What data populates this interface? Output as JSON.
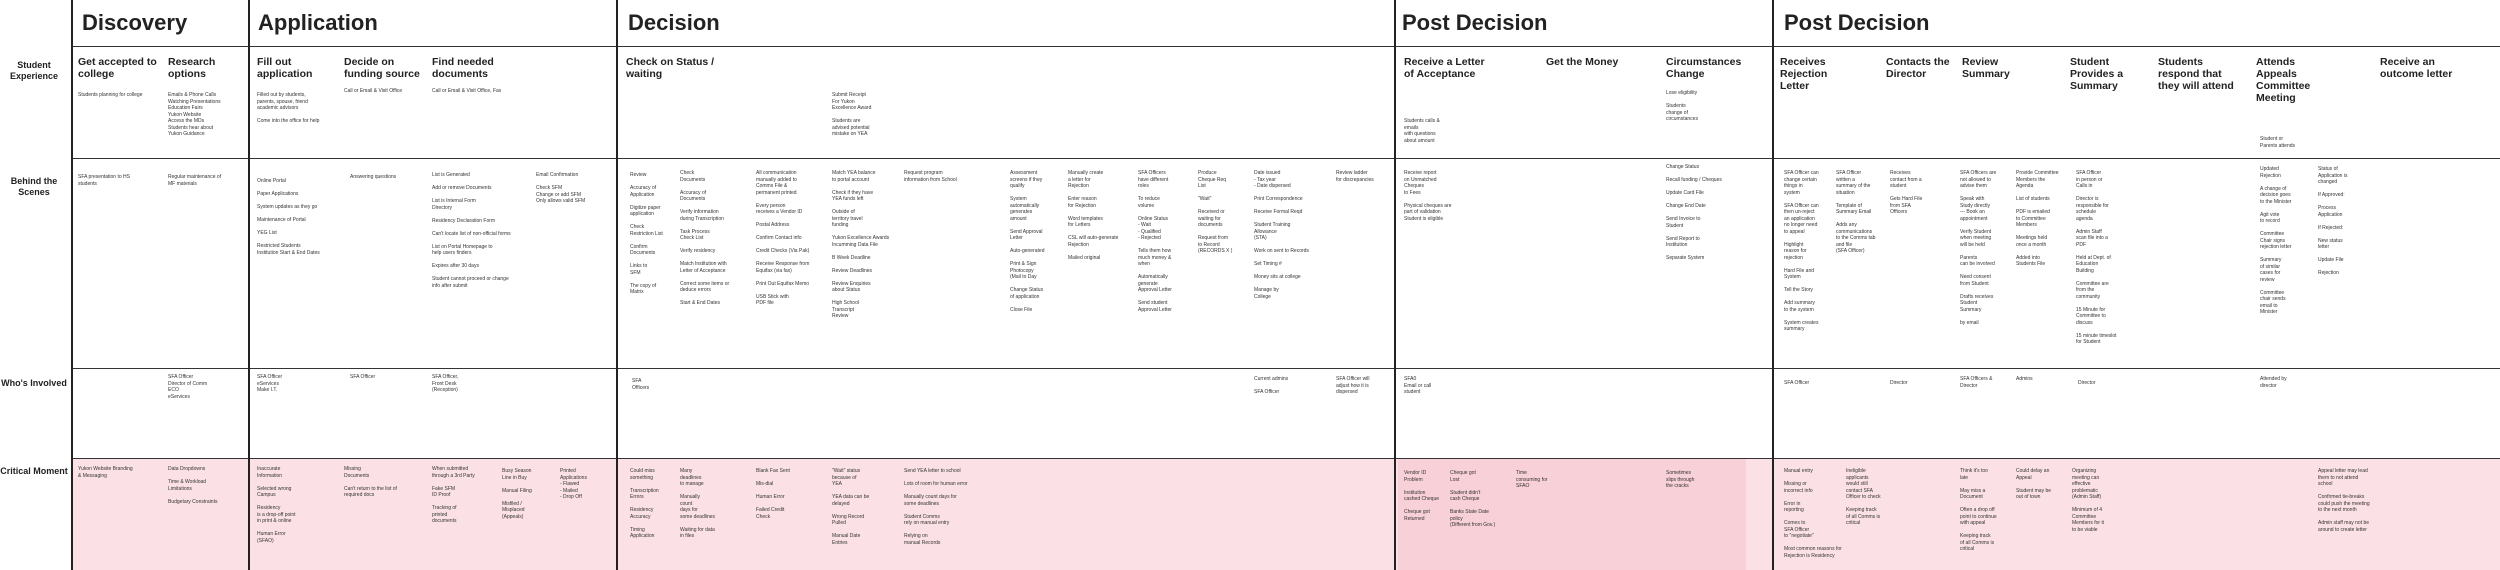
{
  "phases": [
    {
      "id": "discovery",
      "title": "Discovery"
    },
    {
      "id": "application",
      "title": "Application"
    },
    {
      "id": "decision",
      "title": "Decision"
    },
    {
      "id": "post1",
      "title": "Post Decision"
    },
    {
      "id": "post2",
      "title": "Post Decision"
    }
  ],
  "rows": {
    "student_experience": "Student Experience",
    "behind_scenes": "Behind the Scenes",
    "whos_involved": "Who's Involved",
    "critical_moment": "Critical Moment"
  },
  "steps": {
    "get_accepted": "Get accepted to college",
    "research_options": "Research options",
    "fill_out_application": "Fill out application",
    "decide_funding": "Decide on funding source",
    "find_documents": "Find needed documents",
    "check_status": "Check on Status / waiting",
    "receive_acceptance": "Receive a Letter of Acceptance",
    "get_money": "Get the Money",
    "circumstances_change": "Circumstances Change",
    "receives_rejection": "Receives Rejection Letter",
    "contacts_director": "Contacts the Director",
    "review_summary": "Review Summary",
    "provides_summary": "Student Provides a Summary",
    "respond_attend": "Students respond that they will attend",
    "attends_meeting": "Attends Appeals Committee Meeting",
    "receive_outcome": "Receive an outcome letter"
  },
  "experience_notes": {
    "get_accepted": "Students planning for college",
    "research": "Emails & Phone Calls\nWatching Presentations\nEducation Fairs\nYukon Website\nAccess the MDs\nStudents hear about\nYukon Guidance",
    "fill_out": "Filled out by students,\nparents, spouse, friend\nacademic advisors\n\nCome into the office for help",
    "decide": "Call or Email & Visit Office",
    "find_docs": "Call or Email & Visit Office, Fax",
    "check_status": "Submit Receipt\nFor Yukon\nExcellence Award\n\nStudents are\nadvised potential\nmistake on YEA",
    "receive_acceptance": "Students calls &\nemails\nwith questions\nabout amount",
    "circumstances": "Lose eligibility\n\nStudents\nchange of\ncircumstances",
    "attends_meeting": "Student or\nParents attends"
  },
  "behind_notes": {
    "discovery_a": "SFA presentation to HS\nstudents",
    "discovery_b": "Regular maintenance of\nMF materials",
    "app_a": "Online Portal\n\nPaper Applications\n\nSystem updates as they go\n\nMaintenance of Portal\n\nYEG List\n\nRestricted Students\nInstitution Start & End Dates",
    "app_b": "Answering questions",
    "app_c": "List is Generated\n\nAdd or remove Documents\n\nList is Internal Form\nDirectory\n\nResidency Declaration Form\n\nCan't locate list of non-official forms\n\nList on Portal Homepage to\nhelp users finders\n\nExpires after 30 days\n\nStudent cannot proceed or change\ninfo after submit",
    "app_d": "Email Confirmation\n\nCheck SFM\nChange or add SFM\nOnly allows valid SFM",
    "dec_a": "Review\n\nAccuracy of\nApplication\n\nDigitize paper\napplication\n\nCheck\nRestriction List\n\nConfirm\nDocuments\n\nLinks to\nSFM\n\nThe copy of\nMatrix",
    "dec_b": "Check\nDocuments\n\nAccuracy of\nDocuments\n\nVerify information\nduring Transcription\n\nTask Process\nCheck List\n\nVerify residency\n\nMatch Institution with\nLetter of Acceptance\n\nCorrect some items or\ndeduce errors\n\nStart & End Dates",
    "dec_c": "All communication\nmanually added to\nComms File &\npermanent printed\n\nEvery person\nreceives a Vendor ID\n\nPostal Address\n\nConfirm Contact info\n\nCredit Checks (Via Pak)\n\nReceive Response from\nEquifax (via fax)\n\nPrint Out Equifax Memo\n\nUSB Stick with\nPDF file",
    "dec_d": "Match YEA balance\nto portal account\n\nCheck if they have\nYEA funds left\n\nOutside of\nterritory travel\nfunding\n\nYukon Excellence Awards\nIncumming Data File\n\nB Week Deadline\n\nReview Deadlines\n\nReview Enquiries\nabout Status\n\nHigh School\nTranscript\nReview",
    "dec_e": "Request program\ninformation from School",
    "dec_f": "Assessment\nscreens if they\nqualify\n\nSystem\nautomatically\ngenerates\namount\n\nSend Approval\nLetter\n\nAuto-generated\n\nPrint & Sign\nPhotocopy\n(Mail to Day\n\nChange Status\nof application\n\nClose File",
    "dec_g": "Manually create\na letter for\nRejection\n\nEnter reason\nfor Rejection\n\nWord templates\nfor Letters\n\nCSL will auto-generate\nRejection\n\nMailed original",
    "dec_h": "SFA Officers\nhave different\nroles\n\nTo reduce\nvolume\n\nOnline Status\n- Wait\n- Qualified\n- Rejected\n\nTells them how\nmuch money &\nwhen\n\nAutomatically\ngenerate\nApproval Letter\n\nSend student\nApproval Letter",
    "dec_i": "Produce\nCheque Req\nList\n\n\"Wait\"\n\nReceived or\nwaiting for\ndocuments\n\nRequest from\nto Record\n(RECORDS X )",
    "dec_j": "Date issued\n- Tax year\n- Date dispersed\n\nPrint Correspondence\n\nReceive Formal Reqd\n\nStudent Training\nAllowance\n(STA)\n\nWork on sent to Records\n\nSet Timing #\n\nMoney sits at college\n\nManage by\nCollege",
    "dec_k": "Review ladder\nfor discrepancies",
    "post1_a": "Receive report\non Unmatched\nCheques\nto Fees\n\nPhysical cheques are\npart of validation\nStudent is eligible",
    "post1_b": "Change Status\n\nRecall funding / Cheques\n\nUpdate Card File\n\nChange End Date\n\nSend Invoice to\nStudent\n\nSend Report to\nInstitution\n\nSeparate System",
    "post2_a": "SFA Officer can\nchange certain\nthings in\nsystem\n\nSFA Officer can\nthen un-reject\nan application\nno longer need\nto appeal\n\nHighlight\nreason for\nrejection\n\nHard File and\nSystem\n\nTell the Story\n\nAdd summary\nto the system\n\nSystem creates\nsummary",
    "post2_b": "SFA Officer\nwritten a\nsummary of the\nsituation\n\nTemplate of\nSummary Email\n\nAdds any\ncommunications\nto the Comms tab\nand file\n(SFA Officer)",
    "post2_c": "Receives\ncontact from a\nstudent\n\nGets Hard File\nfrom SFA\nOfficers",
    "post2_d": "SFA Officers are\nnot allowed to\nadvise them\n\nSpeak with\nStudy directly\n--- Book an\nappointment\n\nVerify Student\nwhen meeting\nwill be held\n\nParents\ncan be involved\n\nNeed consent\nfrom Student\n\nDrafts receives\nStudent\nSummary\n\nby email",
    "post2_e": "Provide Committee\nMembers the\nAgenda\n\nList of students\n\nPDF is emailed\nto Committee\nMembers\n\nMeetings held\nonce a month\n\nAdded into\nStudents File",
    "post2_f": "SFA Officer\nin person or\nCalls in\n\nDirector is\nresponsible for\nschedule\nagenda\n\nAdmin Staff\nscan file into a\nPDF\n\nHeld at Dept. of\nEducation\nBuilding\n\nCommittee are\nfrom the\ncommunity\n\n15 Minute for\nCommittee to\ndiscuss\n\n15 minute timeslot\nfor Student",
    "post2_g": "Updated\nRejection\n\nA change of\ndecision goes\nto the Minister\n\nAgit vote\nto record\n\nCommittee\nChair signs\nrejection letter\n\nSummary\nof similar\ncases for\nreview\n\nCommittee\nchair sends\nemail to\nMinister",
    "post2_h": "Status of\nApplication is\nchanged\n\nIf Approved:\n\nProcess\nApplication\n\nIf Rejected:\n\nNew status\nletter\n\nUpdate File\n\nRejection"
  },
  "involved": {
    "discovery": "SFA Officer\nDirector of Comm\nECO\neServices",
    "app_a": "SFA Officer\neServices\nMake I.T.",
    "app_b": "SFA Officer",
    "app_c": "SFA Officer,\nFront Desk\n(Reception)",
    "dec_a": "SFA\nOfficers",
    "dec_b": "Current admins\n\nSFA Officer",
    "dec_c": "SFA Officer will\nadjust how it is\ndispersed",
    "post1": "SFA0\nEmail or call\nstudent",
    "post2_a": "SFA Officer",
    "post2_b": "Director",
    "post2_c": "SFA Officers &\nDirector",
    "post2_d": "Admins",
    "post2_e": "Director",
    "post2_f": "Attended by\ndirector"
  },
  "critical": {
    "discovery_a": "Yukon Website Branding\n& Messaging",
    "discovery_b": "Data Dropdowns\n\nTime & Workload\nLimitations\n\nBudgetary Constraints",
    "app_a": "Inaccurate\nInformation\n\nSelected wrong\nCampus\n\nResidency\nis a drop-off point\nin print & online\n\nHuman Error\n(SFAO)",
    "app_b": "Missing\nDocuments\n\nCan't return to the list of\nrequired docs",
    "app_c": "When submitted\nthrough a 3rd Party\n\nFake SFM\nID Proof\n\nTracking of\nprinted\ndocuments",
    "app_d": "Busy Season\nLine in Buy\n\nManual Filing\n\nMisfiled /\nMisplaced\n(Appeals)",
    "app_e": "Printed\nApplications\n- Flawed\n- Mailed\n- Drop Off",
    "dec_a": "Could miss\nsomething\n\nTranscription\nErrors\n\nResidency\nAccuracy\n\nTiming\nApplication",
    "dec_b": "Many\ndeadlines\nto manage\n\nManually\ncount\ndays for\nsome deadlines\n\nWaiting for data\nin files",
    "dec_c": "Blank Fax Sent\n\nMis-dial\n\nHuman Error\n\nFailed Credit\nCheck",
    "dec_d": "\"Wait\" status\nbecause of\nYEA\n\nYEA data can be\ndelayed\n\nWrong Record\nPulled\n\nManual Date\nEntries",
    "dec_e": "Send YEA letter to school\n\nLots of room for human error\n\nManually count days for\nsome deadlines\n\nStudent Comms\nrely on manual entry\n\nRelying on\nmanual Records",
    "post1_a": "Vendor ID\nProblem\n\nInstitution\ncashed Cheque\n\nCheque got\nReturned",
    "post1_b": "Cheque got\nLost\n\nStudent didn't\ncash Cheque\n\nBanks State Date\npolicy\n(Different from Gov.)",
    "post1_c": "Time\nconsuming for\nSFAO",
    "post1_d": "Sometimes\nslips through\nthe cracks",
    "post2_a": "Manual entry\n\nMissing or\nincorrect info\n\nError in\nreporting\n\nComes to\nSFA Officer\nto \"negotiate\"\n\nMost common reasons for\nRejection is Residency",
    "post2_b": "Ineligible\napplicants\nwould still\ncontact SFA\nOfficer to check\n\nKeeping track\nof all Comms is\ncritical",
    "post2_c": "Think it's too\nlate\n\nMay miss a\nDocument\n\nOften a drop off\npoint to continue\nwith appeal\n\nKeeping track\nof all Comms is\ncritical",
    "post2_d": "Could delay an\nAppeal\n\nStudent may be\nout of town",
    "post2_e": "Organizing\nmeeting can\neffective\nproblematic\n(Admin Staff)\n\nMinimum of 4\nCommittee\nMembers for it\nto be viable",
    "post2_f": "Appeal letter may lead\nthem to not attend\nschool\n\nConfirmed tie-breaks\ncould push the meeting\nto the next month\n\nAdmin staff may not be\naround to create letter"
  }
}
